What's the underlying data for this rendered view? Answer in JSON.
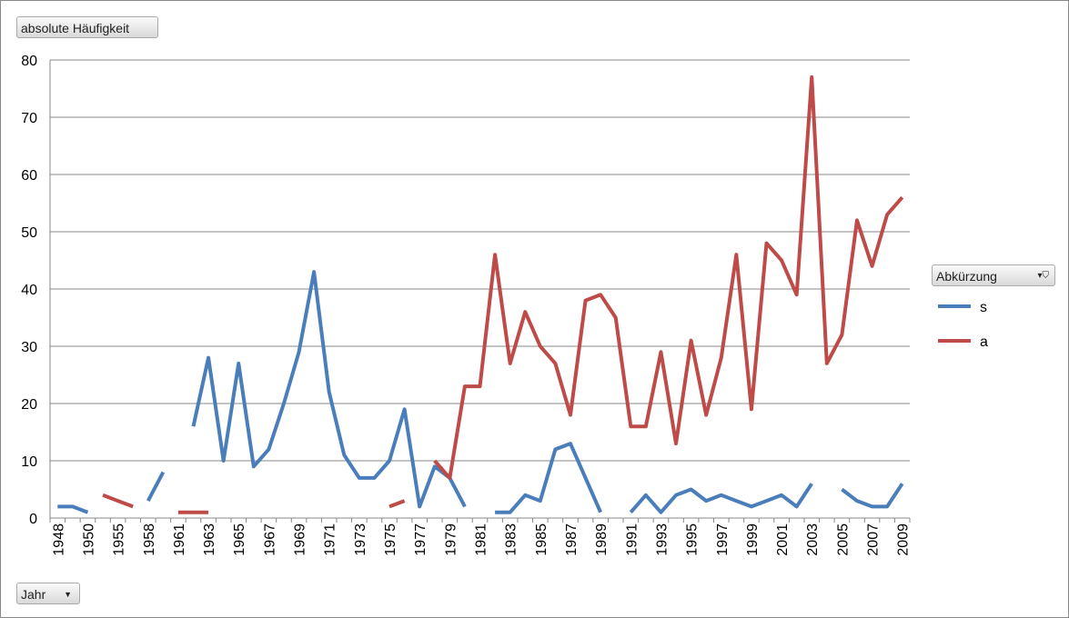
{
  "chart_data": {
    "type": "line",
    "y_button": "absolute Häufigkeit",
    "x_button": "Jahr",
    "legend_title": "Abkürzung",
    "categories": [
      "1948",
      null,
      "1950",
      null,
      "1955",
      null,
      "1958",
      null,
      "1961",
      null,
      "1963",
      null,
      "1965",
      null,
      "1967",
      null,
      "1969",
      null,
      "1971",
      null,
      "1973",
      null,
      "1975",
      null,
      "1977",
      null,
      "1979",
      null,
      "1981",
      null,
      "1983",
      null,
      "1985",
      null,
      "1987",
      null,
      "1989",
      null,
      "1991",
      null,
      "1993",
      null,
      "1995",
      null,
      "1997",
      null,
      "1999",
      null,
      "2001",
      null,
      "2003",
      null,
      "2005",
      null,
      "2007",
      null,
      "2009"
    ],
    "series": [
      {
        "name": "s",
        "color": "#4a7ebb",
        "values": [
          2,
          2,
          1,
          null,
          null,
          null,
          3,
          8,
          null,
          16,
          28,
          10,
          27,
          9,
          12,
          20,
          29,
          43,
          22,
          11,
          7,
          7,
          10,
          19,
          2,
          9,
          7,
          2,
          null,
          1,
          1,
          4,
          3,
          12,
          13,
          7,
          1,
          null,
          1,
          4,
          1,
          4,
          5,
          3,
          4,
          3,
          2,
          3,
          4,
          2,
          6,
          null,
          5,
          3,
          2,
          2,
          6
        ]
      },
      {
        "name": "a",
        "color": "#be4b48",
        "values": [
          null,
          null,
          null,
          4,
          3,
          2,
          null,
          null,
          1,
          1,
          1,
          null,
          null,
          null,
          null,
          null,
          null,
          null,
          null,
          null,
          null,
          null,
          2,
          3,
          null,
          10,
          7,
          23,
          23,
          46,
          27,
          36,
          30,
          27,
          18,
          38,
          39,
          35,
          16,
          16,
          29,
          13,
          31,
          18,
          28,
          46,
          19,
          48,
          45,
          39,
          77,
          27,
          32,
          52,
          44,
          53,
          56
        ]
      }
    ],
    "ylim": [
      0,
      80
    ],
    "yticks": [
      0,
      10,
      20,
      30,
      40,
      50,
      60,
      70,
      80
    ],
    "grid": true,
    "legend": "right"
  }
}
